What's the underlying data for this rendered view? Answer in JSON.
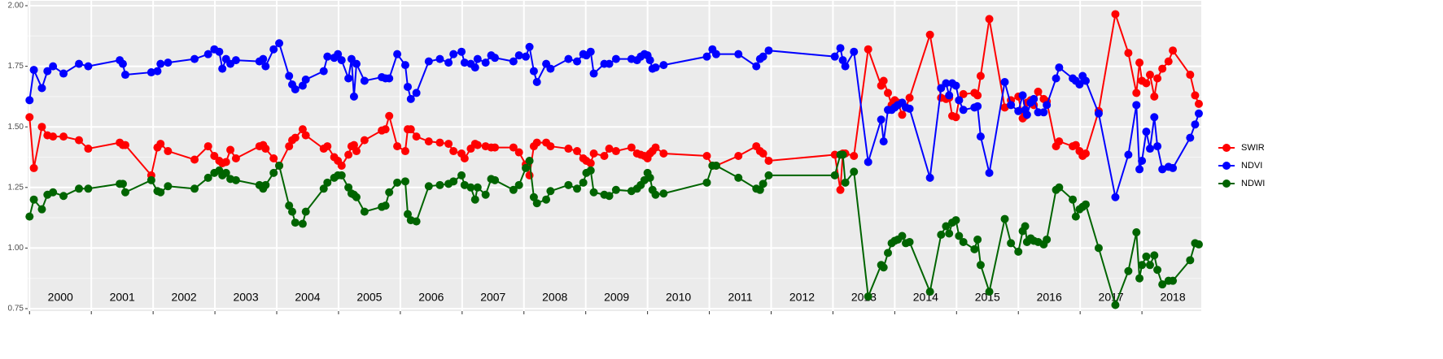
{
  "chart_data": {
    "type": "line",
    "x": [
      2000.0,
      2000.07,
      2000.2,
      2000.29,
      2000.38,
      2000.55,
      2000.8,
      2000.95,
      2001.46,
      2001.51,
      2001.55,
      2001.97,
      2002.07,
      2002.12,
      2002.24,
      2002.67,
      2002.89,
      2002.99,
      2003.07,
      2003.12,
      2003.18,
      2003.25,
      2003.34,
      2003.72,
      2003.78,
      2003.82,
      2003.95,
      2004.04,
      2004.2,
      2004.25,
      2004.3,
      2004.42,
      2004.47,
      2004.76,
      2004.82,
      2004.93,
      2004.99,
      2005.05,
      2005.16,
      2005.21,
      2005.25,
      2005.29,
      2005.42,
      2005.7,
      2005.76,
      2005.82,
      2005.95,
      2006.08,
      2006.12,
      2006.17,
      2006.26,
      2006.46,
      2006.64,
      2006.78,
      2006.86,
      2006.99,
      2007.04,
      2007.14,
      2007.21,
      2007.25,
      2007.38,
      2007.47,
      2007.53,
      2007.83,
      2007.92,
      2008.03,
      2008.09,
      2008.16,
      2008.21,
      2008.36,
      2008.43,
      2008.72,
      2008.86,
      2008.96,
      2009.01,
      2009.08,
      2009.13,
      2009.3,
      2009.38,
      2009.49,
      2009.74,
      2009.83,
      2009.89,
      2009.95,
      2010.0,
      2010.04,
      2010.08,
      2010.13,
      2010.26,
      2010.96,
      2011.05,
      2011.11,
      2011.47,
      2011.76,
      2011.82,
      2011.87,
      2011.96,
      2013.03,
      2013.12,
      2013.16,
      2013.2,
      2013.34,
      2013.57,
      2013.78,
      2013.82,
      2013.89,
      2013.95,
      2014.0,
      2014.05,
      2014.12,
      2014.18,
      2014.24,
      2014.57,
      2014.75,
      2014.83,
      2014.88,
      2014.93,
      2014.99,
      2015.04,
      2015.11,
      2015.29,
      2015.34,
      2015.39,
      2015.53,
      2015.78,
      2015.88,
      2016.0,
      2016.07,
      2016.11,
      2016.14,
      2016.2,
      2016.25,
      2016.32,
      2016.41,
      2016.46,
      2016.61,
      2016.66,
      2016.88,
      2016.93,
      2016.99,
      2017.04,
      2017.09,
      2017.3,
      2017.57,
      2017.78,
      2017.91,
      2017.96,
      2018.0,
      2018.07,
      2018.13,
      2018.2,
      2018.25,
      2018.33,
      2018.43,
      2018.5,
      2018.78,
      2018.86,
      2018.92
    ],
    "series": [
      {
        "name": "SWIR",
        "color": "#ff0000",
        "values": [
          1.54,
          1.33,
          1.5,
          1.465,
          1.46,
          1.46,
          1.445,
          1.41,
          1.435,
          1.425,
          1.425,
          1.3,
          1.415,
          1.43,
          1.4,
          1.365,
          1.42,
          1.38,
          1.36,
          1.35,
          1.355,
          1.405,
          1.37,
          1.42,
          1.425,
          1.41,
          1.37,
          1.34,
          1.42,
          1.445,
          1.455,
          1.49,
          1.465,
          1.41,
          1.42,
          1.375,
          1.36,
          1.34,
          1.385,
          1.42,
          1.425,
          1.4,
          1.445,
          1.485,
          1.49,
          1.545,
          1.42,
          1.4,
          1.49,
          1.49,
          1.46,
          1.44,
          1.435,
          1.43,
          1.4,
          1.39,
          1.37,
          1.41,
          1.43,
          1.425,
          1.42,
          1.415,
          1.415,
          1.415,
          1.395,
          1.345,
          1.3,
          1.42,
          1.435,
          1.435,
          1.42,
          1.41,
          1.4,
          1.37,
          1.36,
          1.35,
          1.39,
          1.38,
          1.41,
          1.4,
          1.415,
          1.39,
          1.385,
          1.38,
          1.37,
          1.39,
          1.4,
          1.415,
          1.39,
          1.38,
          1.34,
          1.34,
          1.38,
          1.42,
          1.4,
          1.39,
          1.36,
          1.385,
          1.24,
          1.39,
          1.39,
          1.38,
          1.82,
          1.67,
          1.69,
          1.64,
          1.59,
          1.61,
          1.6,
          1.55,
          1.58,
          1.62,
          1.88,
          1.62,
          1.615,
          1.62,
          1.545,
          1.54,
          1.61,
          1.635,
          1.64,
          1.63,
          1.71,
          1.945,
          1.58,
          1.61,
          1.625,
          1.535,
          1.545,
          1.6,
          1.61,
          1.59,
          1.645,
          1.615,
          1.605,
          1.42,
          1.44,
          1.42,
          1.425,
          1.4,
          1.38,
          1.39,
          1.565,
          1.965,
          1.805,
          1.64,
          1.765,
          1.69,
          1.68,
          1.715,
          1.625,
          1.7,
          1.74,
          1.77,
          1.815,
          1.715,
          1.63,
          1.595
        ]
      },
      {
        "name": "NDVI",
        "color": "#0000ff",
        "values": [
          1.61,
          1.735,
          1.66,
          1.73,
          1.75,
          1.72,
          1.76,
          1.75,
          1.775,
          1.76,
          1.715,
          1.725,
          1.73,
          1.76,
          1.765,
          1.78,
          1.8,
          1.82,
          1.81,
          1.74,
          1.78,
          1.76,
          1.775,
          1.77,
          1.78,
          1.75,
          1.82,
          1.845,
          1.71,
          1.675,
          1.655,
          1.67,
          1.695,
          1.73,
          1.79,
          1.785,
          1.8,
          1.775,
          1.7,
          1.78,
          1.625,
          1.76,
          1.69,
          1.705,
          1.7,
          1.7,
          1.8,
          1.755,
          1.665,
          1.615,
          1.64,
          1.77,
          1.78,
          1.765,
          1.8,
          1.81,
          1.765,
          1.76,
          1.745,
          1.78,
          1.765,
          1.795,
          1.785,
          1.77,
          1.795,
          1.79,
          1.83,
          1.73,
          1.685,
          1.76,
          1.74,
          1.78,
          1.77,
          1.8,
          1.795,
          1.81,
          1.72,
          1.76,
          1.76,
          1.78,
          1.78,
          1.775,
          1.79,
          1.8,
          1.795,
          1.775,
          1.74,
          1.745,
          1.755,
          1.79,
          1.82,
          1.8,
          1.8,
          1.75,
          1.78,
          1.79,
          1.815,
          1.79,
          1.825,
          1.775,
          1.75,
          1.81,
          1.355,
          1.53,
          1.44,
          1.57,
          1.57,
          1.58,
          1.59,
          1.6,
          1.58,
          1.575,
          1.29,
          1.66,
          1.68,
          1.63,
          1.68,
          1.67,
          1.61,
          1.57,
          1.58,
          1.585,
          1.46,
          1.31,
          1.685,
          1.59,
          1.565,
          1.63,
          1.57,
          1.55,
          1.6,
          1.615,
          1.56,
          1.56,
          1.59,
          1.7,
          1.745,
          1.7,
          1.69,
          1.675,
          1.71,
          1.69,
          1.555,
          1.21,
          1.385,
          1.59,
          1.325,
          1.36,
          1.48,
          1.41,
          1.54,
          1.42,
          1.325,
          1.335,
          1.33,
          1.455,
          1.51,
          1.555
        ]
      },
      {
        "name": "NDWI",
        "color": "#006400",
        "values": [
          1.13,
          1.2,
          1.16,
          1.22,
          1.23,
          1.215,
          1.245,
          1.245,
          1.265,
          1.265,
          1.23,
          1.28,
          1.235,
          1.23,
          1.255,
          1.245,
          1.29,
          1.31,
          1.32,
          1.3,
          1.31,
          1.285,
          1.28,
          1.26,
          1.245,
          1.26,
          1.31,
          1.34,
          1.175,
          1.15,
          1.105,
          1.1,
          1.15,
          1.245,
          1.27,
          1.29,
          1.3,
          1.3,
          1.25,
          1.225,
          1.22,
          1.21,
          1.15,
          1.17,
          1.175,
          1.23,
          1.27,
          1.275,
          1.14,
          1.115,
          1.11,
          1.255,
          1.26,
          1.265,
          1.275,
          1.3,
          1.26,
          1.25,
          1.2,
          1.25,
          1.22,
          1.285,
          1.28,
          1.24,
          1.26,
          1.33,
          1.36,
          1.21,
          1.185,
          1.2,
          1.235,
          1.26,
          1.245,
          1.27,
          1.31,
          1.32,
          1.23,
          1.22,
          1.215,
          1.24,
          1.235,
          1.245,
          1.26,
          1.28,
          1.31,
          1.29,
          1.24,
          1.22,
          1.225,
          1.27,
          1.34,
          1.34,
          1.29,
          1.245,
          1.24,
          1.265,
          1.3,
          1.3,
          1.385,
          1.385,
          1.27,
          1.315,
          0.8,
          0.93,
          0.92,
          0.98,
          1.02,
          1.03,
          1.035,
          1.05,
          1.02,
          1.025,
          0.82,
          1.055,
          1.09,
          1.06,
          1.105,
          1.115,
          1.05,
          1.025,
          0.995,
          1.035,
          0.93,
          0.82,
          1.12,
          1.02,
          0.985,
          1.07,
          1.09,
          1.025,
          1.04,
          1.03,
          1.025,
          1.015,
          1.035,
          1.24,
          1.25,
          1.2,
          1.13,
          1.16,
          1.17,
          1.18,
          1.0,
          0.765,
          0.905,
          1.065,
          0.875,
          0.93,
          0.965,
          0.93,
          0.97,
          0.91,
          0.85,
          0.865,
          0.865,
          0.95,
          1.02,
          1.015
        ]
      }
    ],
    "xlim": [
      1999.97,
      2018.96
    ],
    "xticks": [
      2000,
      2001,
      2002,
      2003,
      2004,
      2005,
      2006,
      2007,
      2008,
      2009,
      2010,
      2011,
      2012,
      2013,
      2014,
      2015,
      2016,
      2017,
      2018
    ],
    "ylim": [
      0.75,
      2.0
    ],
    "yticks": [
      {
        "value": 0.75,
        "label": "0.75"
      },
      {
        "value": 1.0,
        "label": "1.00"
      },
      {
        "value": 1.25,
        "label": "1.25"
      },
      {
        "value": 1.5,
        "label": "1.50"
      },
      {
        "value": 1.75,
        "label": "1.75"
      },
      {
        "value": 2.0,
        "label": "2.00"
      }
    ],
    "grid": true,
    "legend": "right"
  }
}
